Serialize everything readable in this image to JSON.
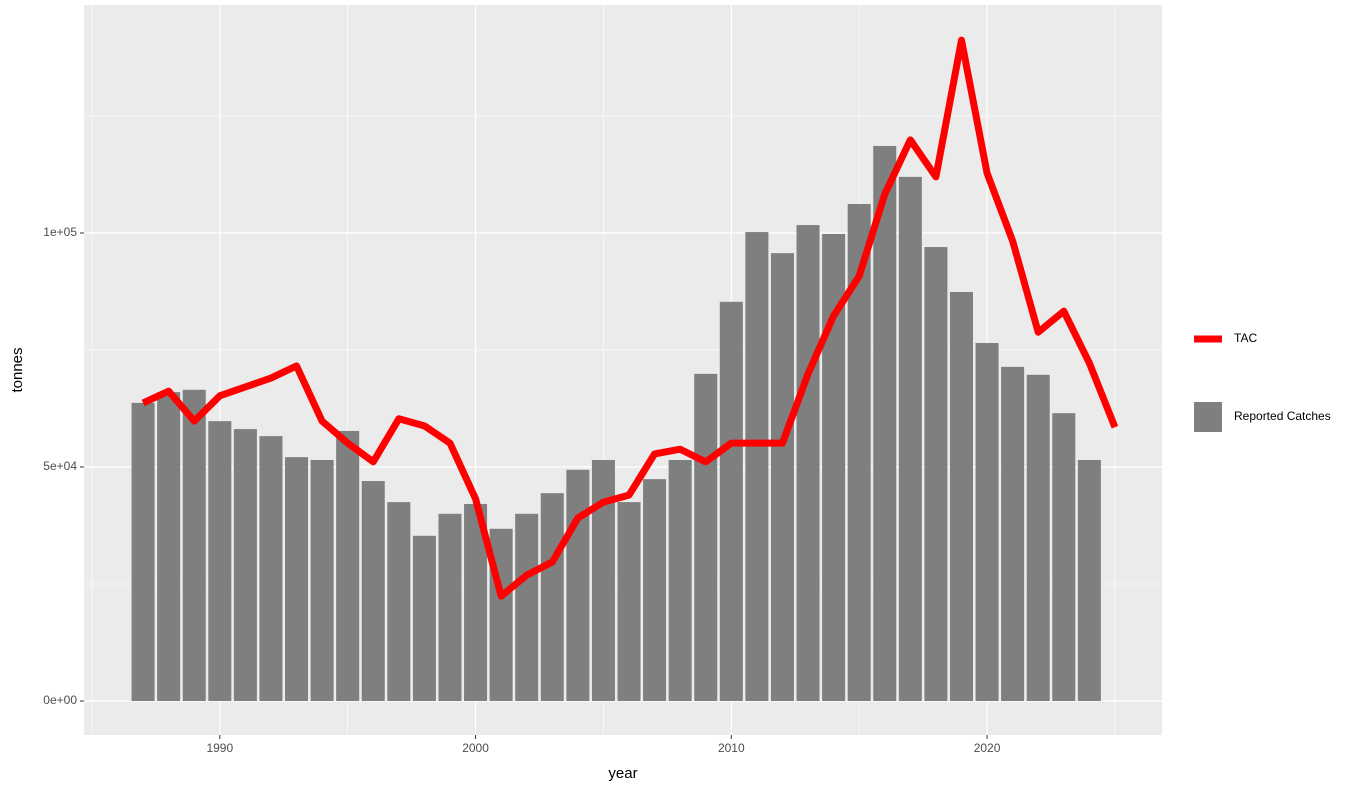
{
  "chart_data": {
    "type": "bar_line",
    "x_label": "year",
    "y_label": "tonnes",
    "x": [
      1987,
      1988,
      1989,
      1990,
      1991,
      1992,
      1993,
      1994,
      1995,
      1996,
      1997,
      1998,
      1999,
      2000,
      2001,
      2002,
      2003,
      2004,
      2005,
      2006,
      2007,
      2008,
      2009,
      2010,
      2011,
      2012,
      2013,
      2014,
      2015,
      2016,
      2017,
      2018,
      2019,
      2020,
      2021,
      2022,
      2023,
      2024,
      2025
    ],
    "series": [
      {
        "name": "TAC",
        "color": "#ff0000",
        "kind": "line",
        "values": [
          63700,
          66200,
          59800,
          65200,
          67100,
          69000,
          71600,
          59800,
          55100,
          51100,
          60300,
          58800,
          55100,
          43200,
          22400,
          26900,
          29700,
          39100,
          42500,
          44000,
          52800,
          53800,
          51100,
          55100,
          55100,
          55100,
          69900,
          82300,
          90800,
          108300,
          119900,
          112000,
          141200,
          112800,
          98300,
          78800,
          83300,
          72200,
          58500
        ]
      },
      {
        "name": "Reported Catches",
        "color": "#7f7f7f",
        "kind": "bar",
        "values": [
          63700,
          66000,
          66500,
          59800,
          58100,
          56600,
          52100,
          51500,
          57700,
          47000,
          42500,
          35300,
          40000,
          42100,
          36800,
          40000,
          44400,
          49400,
          51500,
          42500,
          47400,
          51500,
          69900,
          85300,
          100200,
          95700,
          101700,
          99800,
          106200,
          118600,
          112000,
          97000,
          87400,
          76500,
          71400,
          69700,
          61500,
          51500,
          null
        ]
      }
    ],
    "xlim": [
      1984.69,
      2026.84
    ],
    "xticks": [
      1990,
      2000,
      2010,
      2020
    ],
    "xminor": [
      1985,
      1995,
      2005,
      2015,
      2025
    ],
    "ylim": [
      -7265,
      148718
    ],
    "yticks": [
      {
        "value": 0,
        "label": "0e+00"
      },
      {
        "value": 50000,
        "label": "5e+04"
      },
      {
        "value": 100000,
        "label": "1e+05"
      }
    ],
    "yminor": [
      25000,
      75000,
      125000
    ],
    "grid": true,
    "legend": "right"
  }
}
